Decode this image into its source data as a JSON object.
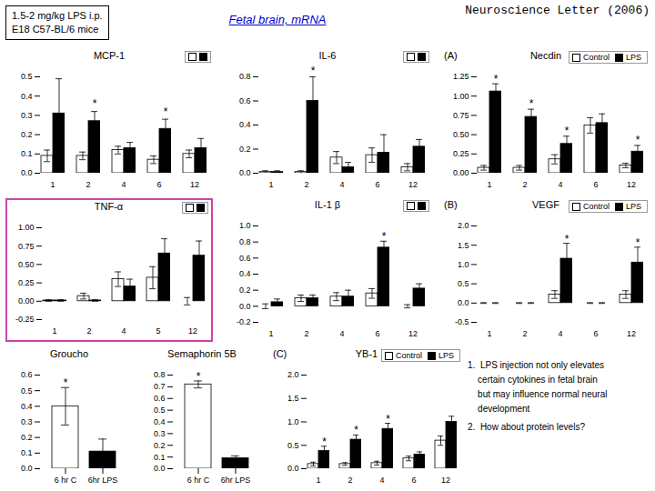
{
  "title": "Neuroscience Letter (2006)",
  "annotations": [
    {
      "text": "1.5-2 mg/kg LPS i.p.\nE18 C57-BL/6 mice"
    },
    {
      "text": "Fetal brain, mRNA",
      "color": "#0000cc"
    },
    {
      "text": "1.  LPS injection not only elevates\n    certain cytokines in fetal brain\n    but may influence normal neural\n    development"
    },
    {
      "text": "2.  How about protein levels?"
    }
  ],
  "chart_data": [
    {
      "type": "bar",
      "title": "MCP-1",
      "categories": [
        "1",
        "2",
        "4",
        "6",
        "12"
      ],
      "series": [
        {
          "color": "white",
          "values": [
            0.09,
            0.09,
            0.12,
            0.07,
            0.1
          ],
          "errors": [
            0.03,
            0.02,
            0.02,
            0.02,
            0.02
          ]
        },
        {
          "color": "black",
          "values": [
            0.31,
            0.27,
            0.13,
            0.23,
            0.13
          ],
          "errors": [
            0.18,
            0.05,
            0.03,
            0.05,
            0.05
          ]
        }
      ],
      "ylim": [
        0,
        0.5
      ],
      "yticks": [
        {
          "value": 0,
          "label": "0.0"
        },
        0.1,
        0.2,
        0.3,
        0.4,
        0.5
      ],
      "legend": "upper right",
      "annotations": [
        {
          "text": "*",
          "x": "2",
          "y": 0.34
        },
        {
          "text": "*",
          "x": "6",
          "y": 0.3
        }
      ]
    },
    {
      "type": "bar",
      "title": "IL-6",
      "categories": [
        "1",
        "2",
        "4",
        "6",
        "12"
      ],
      "series": [
        {
          "color": "white",
          "values": [
            0.01,
            0.01,
            0.13,
            0.15,
            0.05
          ],
          "errors": [
            0.01,
            0.01,
            0.05,
            0.06,
            0.03
          ]
        },
        {
          "color": "black",
          "values": [
            0.01,
            0.6,
            0.05,
            0.17,
            0.22
          ],
          "errors": [
            0.01,
            0.2,
            0.04,
            0.15,
            0.06
          ]
        }
      ],
      "ylim": [
        0,
        0.8
      ],
      "yticks": [
        {
          "value": 0,
          "label": "0.0"
        },
        0.2,
        0.4,
        0.6,
        0.8
      ],
      "legend": "upper right",
      "annotations": [
        {
          "text": "*",
          "x": "2",
          "y": 0.82
        }
      ]
    },
    {
      "type": "bar",
      "title": "Necdin",
      "categories": [
        "1",
        "2",
        "4",
        "6",
        "12"
      ],
      "series": [
        {
          "name": "Control",
          "color": "white",
          "values": [
            0.07,
            0.07,
            0.18,
            0.62,
            0.1
          ],
          "errors": [
            0.03,
            0.03,
            0.06,
            0.1,
            0.03
          ]
        },
        {
          "name": "LPS",
          "color": "black",
          "values": [
            1.06,
            0.73,
            0.38,
            0.65,
            0.28
          ],
          "errors": [
            0.1,
            0.1,
            0.1,
            0.12,
            0.08
          ]
        }
      ],
      "ylim": [
        0,
        1.25
      ],
      "yticks": [
        {
          "value": 0,
          "label": "0.00"
        },
        0.25,
        {
          "value": 0.5,
          "label": "0.50"
        },
        0.75,
        {
          "value": 1,
          "label": "1.00"
        },
        1.25
      ],
      "legend": "upper right",
      "annotations": [
        {
          "text": "(A)"
        },
        {
          "text": "*",
          "x": "1",
          "y": 1.17
        },
        {
          "text": "*",
          "x": "2",
          "y": 0.85
        },
        {
          "text": "*",
          "x": "4",
          "y": 0.5
        },
        {
          "text": "*",
          "x": "12",
          "y": 0.38
        }
      ]
    },
    {
      "type": "bar",
      "title": "TNF-α",
      "categories": [
        "1",
        "2",
        "4",
        "5",
        "12"
      ],
      "series": [
        {
          "color": "white",
          "values": [
            0.01,
            0.07,
            0.3,
            0.32,
            0.0
          ],
          "errors": [
            0.01,
            0.04,
            0.1,
            0.15,
            0.05
          ]
        },
        {
          "color": "black",
          "values": [
            0.01,
            0.01,
            0.2,
            0.65,
            0.62
          ],
          "errors": [
            0.01,
            0.01,
            0.1,
            0.2,
            0.2
          ]
        }
      ],
      "ylim": [
        -0.25,
        1
      ],
      "yticks": [
        -0.25,
        {
          "value": 0,
          "label": "0.00"
        },
        0.25,
        {
          "value": 0.5,
          "label": "0.50"
        },
        0.75,
        {
          "value": 1,
          "label": "1.00"
        }
      ],
      "legend": "upper right",
      "color": "#cc44aa"
    },
    {
      "type": "bar",
      "title": "IL-1 β",
      "categories": [
        "1",
        "2",
        "4",
        "6",
        "12"
      ],
      "series": [
        {
          "color": "white",
          "values": [
            0.0,
            0.1,
            0.12,
            0.16,
            0.0
          ],
          "errors": [
            0.03,
            0.04,
            0.05,
            0.06,
            0.02
          ]
        },
        {
          "color": "black",
          "values": [
            0.05,
            0.1,
            0.12,
            0.73,
            0.22
          ],
          "errors": [
            0.04,
            0.04,
            0.08,
            0.08,
            0.06
          ]
        }
      ],
      "ylim": [
        -0.2,
        1
      ],
      "yticks": [
        -0.2,
        {
          "value": 0,
          "label": "0.0"
        },
        0.2,
        0.4,
        0.6,
        0.8,
        {
          "value": 1,
          "label": "1.0"
        }
      ],
      "legend": "upper right",
      "annotations": [
        {
          "text": "*",
          "x": "6",
          "y": 0.83
        }
      ]
    },
    {
      "type": "bar",
      "title": "VEGF",
      "categories": [
        "1",
        "2",
        "4",
        "6",
        "12"
      ],
      "series": [
        {
          "name": "Control",
          "color": "white",
          "values": [
            0.0,
            0.0,
            0.22,
            0.0,
            0.22
          ],
          "errors": [
            0.01,
            0.01,
            0.1,
            0.01,
            0.1
          ]
        },
        {
          "name": "LPS",
          "color": "black",
          "values": [
            0.0,
            0.0,
            1.15,
            0.0,
            1.05
          ],
          "errors": [
            0.01,
            0.01,
            0.4,
            0.01,
            0.4
          ]
        }
      ],
      "ylim": [
        -0.5,
        2
      ],
      "yticks": [
        -0.5,
        {
          "value": 0,
          "label": "0.0"
        },
        0.5,
        {
          "value": 1,
          "label": "1.0"
        },
        1.5,
        {
          "value": 2,
          "label": "2.0"
        }
      ],
      "legend": "upper right",
      "annotations": [
        {
          "text": "(B)"
        },
        {
          "text": "*",
          "x": "4",
          "y": 1.57
        },
        {
          "text": "*",
          "x": "12",
          "y": 1.47
        }
      ]
    },
    {
      "type": "bar",
      "title": "Groucho",
      "categories": [
        "6 hr C",
        "6hr LPS"
      ],
      "values": [
        0.4,
        0.11
      ],
      "errors": [
        0.12,
        0.08
      ],
      "colors": [
        "white",
        "black"
      ],
      "ylim": [
        0,
        0.6
      ],
      "yticks": [
        {
          "value": 0,
          "label": "0.0"
        },
        0.1,
        0.2,
        0.3,
        0.4,
        0.5,
        0.6
      ],
      "annotations": [
        {
          "text": "*",
          "x": "6 hr C",
          "y": 0.53
        }
      ]
    },
    {
      "type": "bar",
      "title": "Semaphorin 5B",
      "categories": [
        "6 hr C",
        "6hr LPS"
      ],
      "values": [
        0.72,
        0.09
      ],
      "errors": [
        0.03,
        0.02
      ],
      "colors": [
        "white",
        "black"
      ],
      "ylim": [
        0,
        0.8
      ],
      "yticks": [
        {
          "value": 0,
          "label": "0.0"
        },
        0.1,
        0.2,
        0.3,
        0.4,
        0.5,
        0.6,
        0.7,
        0.8
      ],
      "annotations": [
        {
          "text": "*",
          "x": "6 hr C",
          "y": 0.76
        }
      ]
    },
    {
      "type": "bar",
      "title": "YB-1",
      "categories": [
        "1",
        "2",
        "4",
        "6",
        "12"
      ],
      "series": [
        {
          "name": "Control",
          "color": "white",
          "values": [
            0.1,
            0.1,
            0.12,
            0.22,
            0.6
          ],
          "errors": [
            0.04,
            0.03,
            0.04,
            0.05,
            0.1
          ]
        },
        {
          "name": "LPS",
          "color": "black",
          "values": [
            0.38,
            0.62,
            0.85,
            0.3,
            1.0
          ],
          "errors": [
            0.1,
            0.1,
            0.12,
            0.06,
            0.12
          ]
        }
      ],
      "ylim": [
        0,
        2
      ],
      "yticks": [
        {
          "value": 0,
          "label": "0.0"
        },
        0.5,
        {
          "value": 1,
          "label": "1.0"
        },
        1.5,
        {
          "value": 2,
          "label": "2.0"
        }
      ],
      "legend": "upper right",
      "annotations": [
        {
          "text": "(C)"
        },
        {
          "text": "*",
          "x": "1",
          "y": 0.5
        },
        {
          "text": "*",
          "x": "2",
          "y": 0.74
        },
        {
          "text": "*",
          "x": "4",
          "y": 0.99
        }
      ]
    }
  ]
}
